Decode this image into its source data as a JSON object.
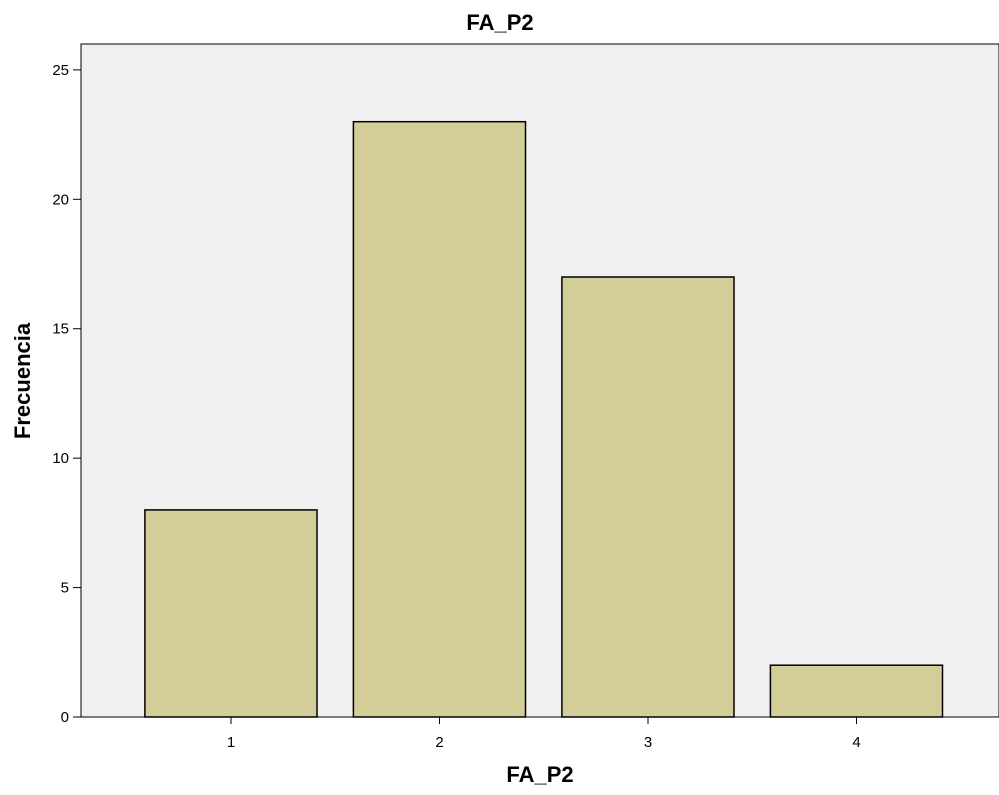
{
  "chart_data": {
    "type": "bar",
    "title": "FA_P2",
    "xlabel": "FA_P2",
    "ylabel": "Frecuencia",
    "categories": [
      "1",
      "2",
      "3",
      "4"
    ],
    "values": [
      8,
      23,
      17,
      2
    ],
    "ylim": [
      0,
      26
    ],
    "yticks": [
      0,
      5,
      10,
      15,
      20,
      25
    ],
    "grid": false,
    "legend": "none",
    "colors": {
      "bar_fill": "#d3ce97",
      "bar_stroke": "#000000",
      "plot_background": "#f0f0f0",
      "page_background": "#ffffff"
    }
  }
}
